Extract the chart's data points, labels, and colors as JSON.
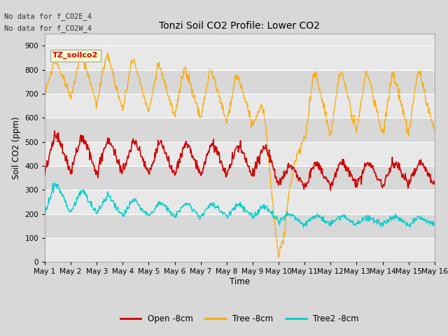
{
  "title": "Tonzi Soil CO2 Profile: Lower CO2",
  "ylabel": "Soil CO2 (ppm)",
  "xlabel": "Time",
  "no_data_text": [
    "No data for f_CO2E_4",
    "No data for f_CO2W_4"
  ],
  "annotation_box": "TZ_soilco2",
  "ylim": [
    0,
    950
  ],
  "yticks": [
    0,
    100,
    200,
    300,
    400,
    500,
    600,
    700,
    800,
    900
  ],
  "xtick_labels": [
    "May 1",
    "May 2",
    "May 3",
    "May 4",
    "May 5",
    "May 6",
    "May 7",
    "May 8",
    "May 9",
    "May 10",
    "May 11",
    "May 12",
    "May 13",
    "May 14",
    "May 15",
    "May 16"
  ],
  "colors": {
    "open": "#cc0000",
    "tree": "#ffaa00",
    "tree2": "#00cccc"
  },
  "legend_labels": [
    "Open -8cm",
    "Tree -8cm",
    "Tree2 -8cm"
  ],
  "bg_color": "#d8d8d8",
  "plot_bg_light": "#e8e8e8",
  "plot_bg_dark": "#d0d0d0",
  "grid_color": "#ffffff",
  "n_points": 720,
  "seed": 42
}
